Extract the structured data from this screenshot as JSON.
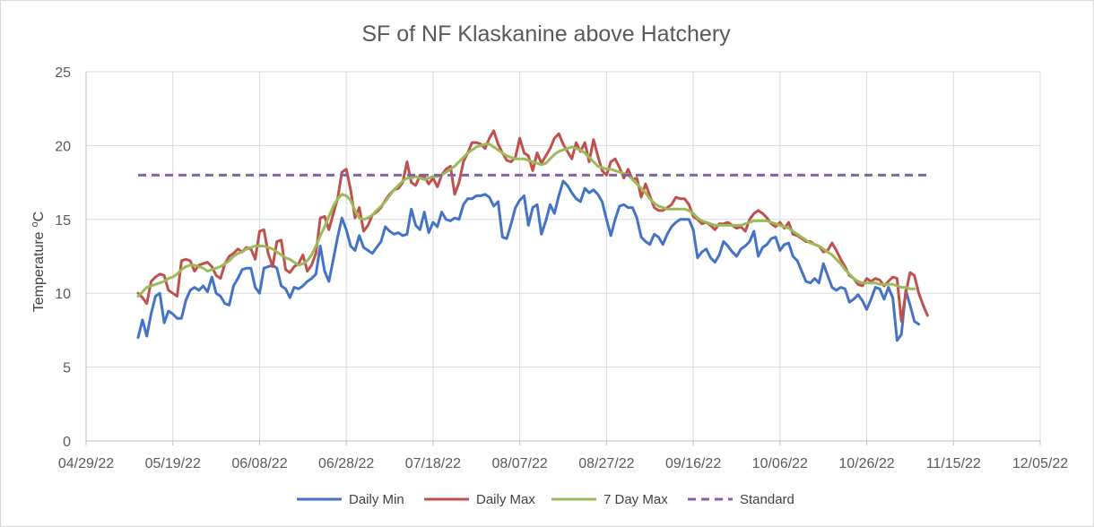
{
  "chart_data": {
    "type": "line",
    "title": "SF of NF Klaskanine above Hatchery",
    "ylabel": "Temperature",
    "ylabel_sup": "o",
    "ylabel_unit": "C",
    "xlabel": "",
    "ylim": [
      0,
      25
    ],
    "yticks": [
      0,
      5,
      10,
      15,
      20,
      25
    ],
    "xlim": [
      "2022-04-29",
      "2022-12-05"
    ],
    "xtick_labels": [
      "04/29/22",
      "05/19/22",
      "06/08/22",
      "06/28/22",
      "07/18/22",
      "08/07/22",
      "08/27/22",
      "09/16/22",
      "10/06/22",
      "10/26/22",
      "11/15/22",
      "12/05/22"
    ],
    "grid": true,
    "legend_position": "bottom",
    "x_start_date": "2022-05-11",
    "x_step_days": 1,
    "series": [
      {
        "name": "Daily Min",
        "color": "#4472C4",
        "style": "solid",
        "values": [
          7.0,
          8.2,
          7.1,
          8.6,
          9.8,
          10.0,
          8.0,
          8.8,
          8.6,
          8.3,
          8.3,
          9.5,
          10.2,
          10.4,
          10.2,
          10.5,
          10.1,
          11.1,
          10.0,
          9.8,
          9.3,
          9.2,
          10.5,
          11.0,
          11.6,
          11.7,
          11.7,
          10.4,
          10.0,
          11.7,
          11.8,
          11.9,
          11.7,
          10.5,
          10.3,
          9.7,
          10.4,
          10.3,
          10.5,
          10.8,
          11.0,
          11.3,
          13.2,
          11.5,
          10.8,
          12.3,
          13.8,
          15.1,
          14.3,
          13.2,
          12.9,
          13.9,
          13.1,
          12.9,
          12.7,
          13.1,
          13.5,
          14.5,
          14.2,
          14.0,
          14.1,
          13.9,
          14.0,
          15.7,
          14.6,
          14.3,
          15.5,
          14.1,
          14.8,
          14.5,
          15.5,
          15.0,
          14.9,
          15.1,
          15.0,
          16.0,
          16.4,
          16.4,
          16.6,
          16.6,
          16.7,
          16.5,
          15.9,
          16.2,
          13.8,
          13.7,
          14.7,
          15.8,
          16.3,
          16.6,
          14.6,
          15.8,
          16.0,
          14.0,
          14.9,
          16.0,
          15.4,
          16.6,
          17.6,
          17.3,
          16.8,
          16.4,
          16.2,
          17.1,
          16.8,
          17.0,
          16.7,
          16.2,
          15.0,
          13.9,
          15.0,
          15.9,
          16.0,
          15.8,
          15.8,
          15.1,
          13.8,
          13.5,
          13.3,
          14.0,
          13.8,
          13.3,
          14.0,
          14.5,
          14.8,
          15.0,
          15.0,
          15.0,
          14.3,
          12.4,
          12.8,
          13.0,
          12.4,
          12.1,
          12.6,
          13.5,
          13.2,
          12.8,
          12.5,
          13.0,
          13.2,
          13.5,
          14.2,
          12.5,
          13.1,
          13.3,
          13.7,
          13.8,
          12.9,
          13.3,
          13.4,
          12.5,
          12.2,
          11.5,
          10.8,
          10.7,
          11.0,
          10.7,
          12.0,
          11.2,
          10.4,
          10.2,
          10.4,
          10.3,
          9.4,
          9.6,
          9.9,
          9.5,
          8.9,
          9.6,
          10.4,
          10.3,
          9.6,
          10.4,
          9.7,
          6.8,
          7.2,
          10.2,
          9.2,
          8.1,
          7.9
        ]
      },
      {
        "name": "Daily Max",
        "color": "#C0504D",
        "style": "solid",
        "values": [
          10.0,
          9.7,
          9.3,
          10.8,
          11.1,
          11.3,
          11.2,
          10.2,
          10.0,
          9.8,
          12.2,
          12.3,
          12.2,
          11.5,
          11.9,
          12.0,
          12.1,
          11.8,
          11.2,
          11.0,
          12.0,
          12.5,
          12.7,
          13.0,
          12.8,
          13.1,
          13.0,
          12.3,
          14.2,
          14.3,
          12.7,
          11.8,
          13.5,
          13.6,
          11.6,
          11.4,
          11.8,
          12.0,
          12.6,
          11.5,
          11.9,
          12.7,
          15.1,
          15.2,
          14.3,
          15.4,
          16.4,
          18.2,
          18.4,
          17.0,
          15.1,
          15.8,
          14.2,
          14.6,
          15.3,
          15.5,
          15.8,
          16.3,
          16.7,
          17.0,
          17.1,
          17.5,
          18.9,
          17.5,
          17.3,
          18.0,
          17.9,
          17.4,
          17.8,
          17.2,
          18.0,
          18.4,
          18.6,
          16.7,
          17.5,
          18.9,
          19.5,
          20.2,
          20.2,
          20.1,
          19.8,
          20.5,
          21.0,
          20.1,
          19.5,
          19.0,
          18.9,
          19.2,
          20.5,
          19.5,
          19.3,
          18.3,
          19.5,
          18.8,
          19.3,
          19.8,
          20.5,
          20.8,
          20.1,
          19.6,
          19.1,
          20.2,
          19.6,
          20.2,
          18.9,
          20.4,
          19.3,
          18.3,
          18.0,
          18.9,
          19.1,
          18.5,
          17.8,
          18.4,
          17.7,
          17.8,
          16.5,
          17.4,
          16.6,
          15.8,
          15.6,
          15.6,
          15.8,
          16.0,
          16.5,
          16.4,
          16.4,
          16.0,
          15.2,
          15.0,
          14.7,
          14.8,
          14.6,
          14.3,
          14.7,
          14.7,
          14.8,
          14.6,
          14.4,
          14.5,
          14.2,
          15.0,
          15.4,
          15.6,
          15.4,
          15.1,
          14.7,
          14.5,
          14.8,
          14.4,
          14.8,
          14.0,
          13.9,
          13.7,
          13.5,
          13.5,
          13.3,
          13.2,
          12.8,
          12.9,
          13.4,
          12.9,
          12.3,
          11.8,
          11.2,
          11.0,
          10.6,
          10.5,
          11.0,
          10.8,
          11.0,
          10.9,
          10.5,
          10.8,
          11.1,
          11.0,
          8.1,
          10.0,
          11.4,
          11.2,
          10.0,
          9.2,
          8.5
        ]
      },
      {
        "name": "7 Day Max",
        "color": "#9BBB59",
        "style": "solid",
        "values": [
          9.8,
          10.1,
          10.4,
          10.5,
          10.6,
          10.7,
          10.8,
          11.0,
          11.1,
          11.3,
          11.6,
          11.8,
          11.9,
          11.9,
          11.8,
          11.7,
          11.5,
          11.6,
          11.7,
          11.8,
          12.0,
          12.2,
          12.5,
          12.7,
          12.8,
          13.0,
          13.1,
          13.2,
          13.2,
          13.2,
          13.1,
          13.0,
          12.8,
          12.6,
          12.4,
          12.3,
          12.1,
          11.9,
          12.0,
          12.2,
          12.6,
          13.2,
          13.9,
          14.5,
          15.2,
          15.9,
          16.4,
          16.7,
          16.6,
          16.3,
          15.6,
          15.1,
          15.0,
          15.1,
          15.3,
          15.6,
          15.9,
          16.2,
          16.6,
          17.0,
          17.3,
          17.6,
          17.8,
          17.8,
          17.9,
          17.8,
          17.7,
          17.8,
          17.9,
          17.9,
          18.0,
          18.2,
          18.4,
          18.6,
          18.9,
          19.2,
          19.5,
          19.7,
          19.9,
          20.0,
          20.1,
          20.1,
          19.9,
          19.7,
          19.5,
          19.3,
          19.2,
          19.1,
          19.1,
          19.1,
          19.0,
          18.9,
          18.8,
          18.7,
          18.8,
          19.1,
          19.4,
          19.6,
          19.7,
          19.8,
          19.9,
          19.8,
          19.7,
          19.5,
          19.2,
          18.9,
          18.6,
          18.5,
          18.4,
          18.4,
          18.3,
          18.2,
          18.1,
          18.0,
          17.7,
          17.4,
          17.1,
          16.8,
          16.4,
          16.1,
          15.9,
          15.8,
          15.7,
          15.7,
          15.7,
          15.7,
          15.7,
          15.6,
          15.4,
          15.1,
          14.9,
          14.8,
          14.7,
          14.6,
          14.6,
          14.6,
          14.6,
          14.6,
          14.6,
          14.6,
          14.7,
          14.8,
          14.9,
          14.9,
          14.9,
          14.9,
          14.8,
          14.7,
          14.6,
          14.5,
          14.4,
          14.2,
          14.0,
          13.8,
          13.6,
          13.4,
          13.3,
          13.2,
          13.0,
          12.8,
          12.6,
          12.3,
          12.0,
          11.6,
          11.3,
          11.0,
          10.8,
          10.7,
          10.7,
          10.7,
          10.7,
          10.6,
          10.6,
          10.6,
          10.6,
          10.5,
          10.4,
          10.4,
          10.3,
          10.3
        ]
      },
      {
        "name": "Standard",
        "color": "#8064A2",
        "style": "dashed",
        "constant": 18
      }
    ]
  }
}
